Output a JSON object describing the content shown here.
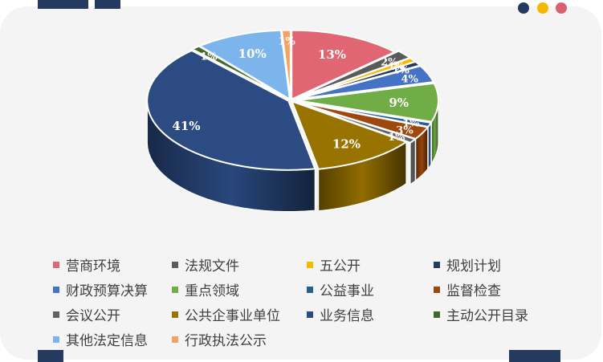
{
  "theme": {
    "dot_colors": [
      "#243a5e",
      "#f5b800",
      "#d9606e"
    ]
  },
  "chart_data": {
    "type": "pie",
    "style": "3d-exploded",
    "categories": [
      "营商环境",
      "法规文件",
      "五公开",
      "规划计划",
      "财政预算决算",
      "重点领域",
      "公益事业",
      "监督检查",
      "会议公开",
      "公共企事业单位",
      "业务信息",
      "主动公开目录",
      "其他法定信息",
      "行政执法公示"
    ],
    "values": [
      13,
      2,
      1,
      1,
      4,
      9,
      1,
      3,
      1,
      12,
      41,
      1,
      10,
      1
    ],
    "labels": [
      "13%",
      "2%",
      "1%",
      "1%",
      "4%",
      "9%",
      "1%",
      "3%",
      "1%",
      "12%",
      "41%",
      "1%",
      "10%",
      "1%"
    ],
    "colors": [
      "#e06673",
      "#5a5a5a",
      "#f5b800",
      "#243a5e",
      "#4472c4",
      "#70ad47",
      "#255e91",
      "#9e480e",
      "#636363",
      "#997300",
      "#2b4b82",
      "#43682b",
      "#7cb5ec",
      "#f4a460"
    ],
    "legend_position": "bottom"
  }
}
